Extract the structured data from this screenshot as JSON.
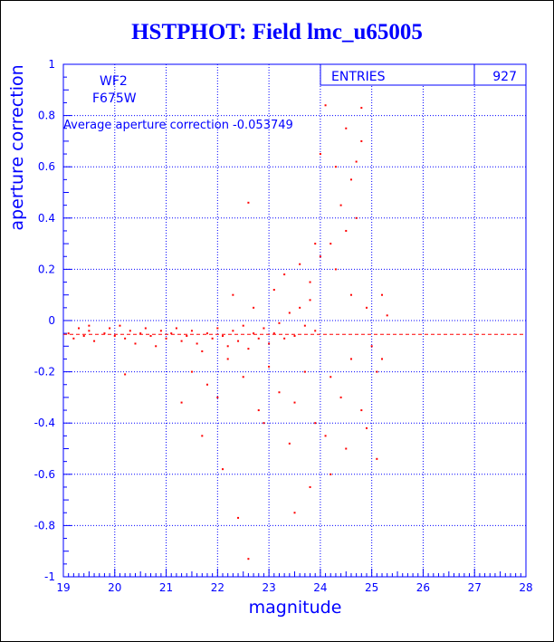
{
  "title": "HSTPHOT: Field lmc_u65005",
  "colors": {
    "axis": "#0000ff",
    "points": "#ff0000",
    "background": "#ffffff"
  },
  "stats": {
    "entries_label": "ENTRIES",
    "entries_value": "927"
  },
  "annotations": {
    "camera": "WF2",
    "filter": "F675W",
    "average_text": "Average aperture correction -0.053749"
  },
  "chart_data": {
    "type": "scatter",
    "title": "HSTPHOT: Field lmc_u65005",
    "xlabel": "magnitude",
    "ylabel": "aperture correction",
    "xlim": [
      19,
      28
    ],
    "ylim": [
      -1,
      1
    ],
    "x_ticks": [
      19,
      20,
      21,
      22,
      23,
      24,
      25,
      26,
      27,
      28
    ],
    "y_ticks": [
      -1,
      -0.8,
      -0.6,
      -0.4,
      -0.2,
      0,
      0.2,
      0.4,
      0.6,
      0.8,
      1
    ],
    "grid": true,
    "reference_line": {
      "y": -0.053749,
      "style": "dashed",
      "color": "#ff0000"
    },
    "series": [
      {
        "points": [
          [
            19.1,
            -0.05
          ],
          [
            19.2,
            -0.07
          ],
          [
            19.3,
            -0.03
          ],
          [
            19.4,
            -0.06
          ],
          [
            19.5,
            -0.04
          ],
          [
            19.6,
            -0.08
          ],
          [
            19.8,
            -0.05
          ],
          [
            19.9,
            -0.03
          ],
          [
            20.0,
            -0.06
          ],
          [
            20.1,
            -0.02
          ],
          [
            20.2,
            -0.07
          ],
          [
            20.3,
            -0.04
          ],
          [
            20.4,
            -0.09
          ],
          [
            20.5,
            -0.05
          ],
          [
            20.6,
            -0.03
          ],
          [
            20.7,
            -0.06
          ],
          [
            20.8,
            -0.1
          ],
          [
            20.9,
            -0.04
          ],
          [
            21.0,
            -0.07
          ],
          [
            21.1,
            -0.05
          ],
          [
            21.2,
            -0.03
          ],
          [
            21.3,
            -0.08
          ],
          [
            21.4,
            -0.06
          ],
          [
            21.5,
            -0.04
          ],
          [
            21.6,
            -0.09
          ],
          [
            21.7,
            -0.12
          ],
          [
            21.8,
            -0.05
          ],
          [
            21.9,
            -0.07
          ],
          [
            22.0,
            -0.03
          ],
          [
            22.1,
            -0.06
          ],
          [
            22.2,
            -0.1
          ],
          [
            22.3,
            -0.04
          ],
          [
            22.4,
            -0.08
          ],
          [
            22.5,
            -0.02
          ],
          [
            22.6,
            -0.11
          ],
          [
            22.7,
            -0.05
          ],
          [
            22.8,
            -0.07
          ],
          [
            22.9,
            -0.03
          ],
          [
            23.0,
            -0.09
          ],
          [
            23.1,
            -0.05
          ],
          [
            23.2,
            -0.01
          ],
          [
            23.3,
            -0.07
          ],
          [
            23.4,
            0.03
          ],
          [
            23.5,
            -0.06
          ],
          [
            23.6,
            0.05
          ],
          [
            23.7,
            -0.02
          ],
          [
            23.8,
            0.08
          ],
          [
            23.9,
            -0.04
          ],
          [
            21.5,
            -0.2
          ],
          [
            21.8,
            -0.25
          ],
          [
            22.0,
            -0.3
          ],
          [
            22.2,
            -0.15
          ],
          [
            22.5,
            -0.22
          ],
          [
            22.8,
            -0.35
          ],
          [
            23.0,
            -0.18
          ],
          [
            23.2,
            -0.28
          ],
          [
            23.5,
            -0.32
          ],
          [
            23.7,
            -0.2
          ],
          [
            23.9,
            -0.4
          ],
          [
            22.3,
            0.1
          ],
          [
            22.7,
            0.05
          ],
          [
            23.1,
            0.12
          ],
          [
            23.3,
            0.18
          ],
          [
            23.6,
            0.22
          ],
          [
            23.8,
            0.15
          ],
          [
            24.0,
            0.25
          ],
          [
            24.2,
            0.3
          ],
          [
            24.4,
            0.45
          ],
          [
            24.6,
            0.55
          ],
          [
            24.8,
            0.7
          ],
          [
            24.5,
            0.75
          ],
          [
            24.7,
            0.62
          ],
          [
            24.3,
            0.2
          ],
          [
            24.6,
            0.1
          ],
          [
            24.9,
            0.05
          ],
          [
            25.0,
            -0.1
          ],
          [
            25.1,
            -0.2
          ],
          [
            24.8,
            -0.35
          ],
          [
            24.5,
            -0.5
          ],
          [
            24.2,
            -0.6
          ],
          [
            23.8,
            -0.65
          ],
          [
            23.5,
            -0.75
          ],
          [
            22.4,
            -0.77
          ],
          [
            22.6,
            -0.93
          ],
          [
            22.6,
            0.46
          ],
          [
            24.1,
            0.84
          ],
          [
            24.8,
            0.83
          ],
          [
            19.5,
            -0.02
          ],
          [
            20.2,
            -0.21
          ],
          [
            21.3,
            -0.32
          ],
          [
            21.7,
            -0.45
          ],
          [
            22.1,
            -0.58
          ],
          [
            22.9,
            -0.4
          ],
          [
            23.4,
            -0.48
          ],
          [
            24.1,
            -0.45
          ],
          [
            24.4,
            -0.3
          ],
          [
            24.9,
            -0.42
          ],
          [
            25.1,
            -0.54
          ],
          [
            24.3,
            0.6
          ],
          [
            24.5,
            0.35
          ],
          [
            24.0,
            0.65
          ],
          [
            23.9,
            0.3
          ],
          [
            24.7,
            0.4
          ],
          [
            25.2,
            0.1
          ],
          [
            25.3,
            0.02
          ],
          [
            25.2,
            -0.15
          ],
          [
            24.6,
            -0.15
          ],
          [
            24.2,
            -0.22
          ]
        ]
      }
    ]
  }
}
